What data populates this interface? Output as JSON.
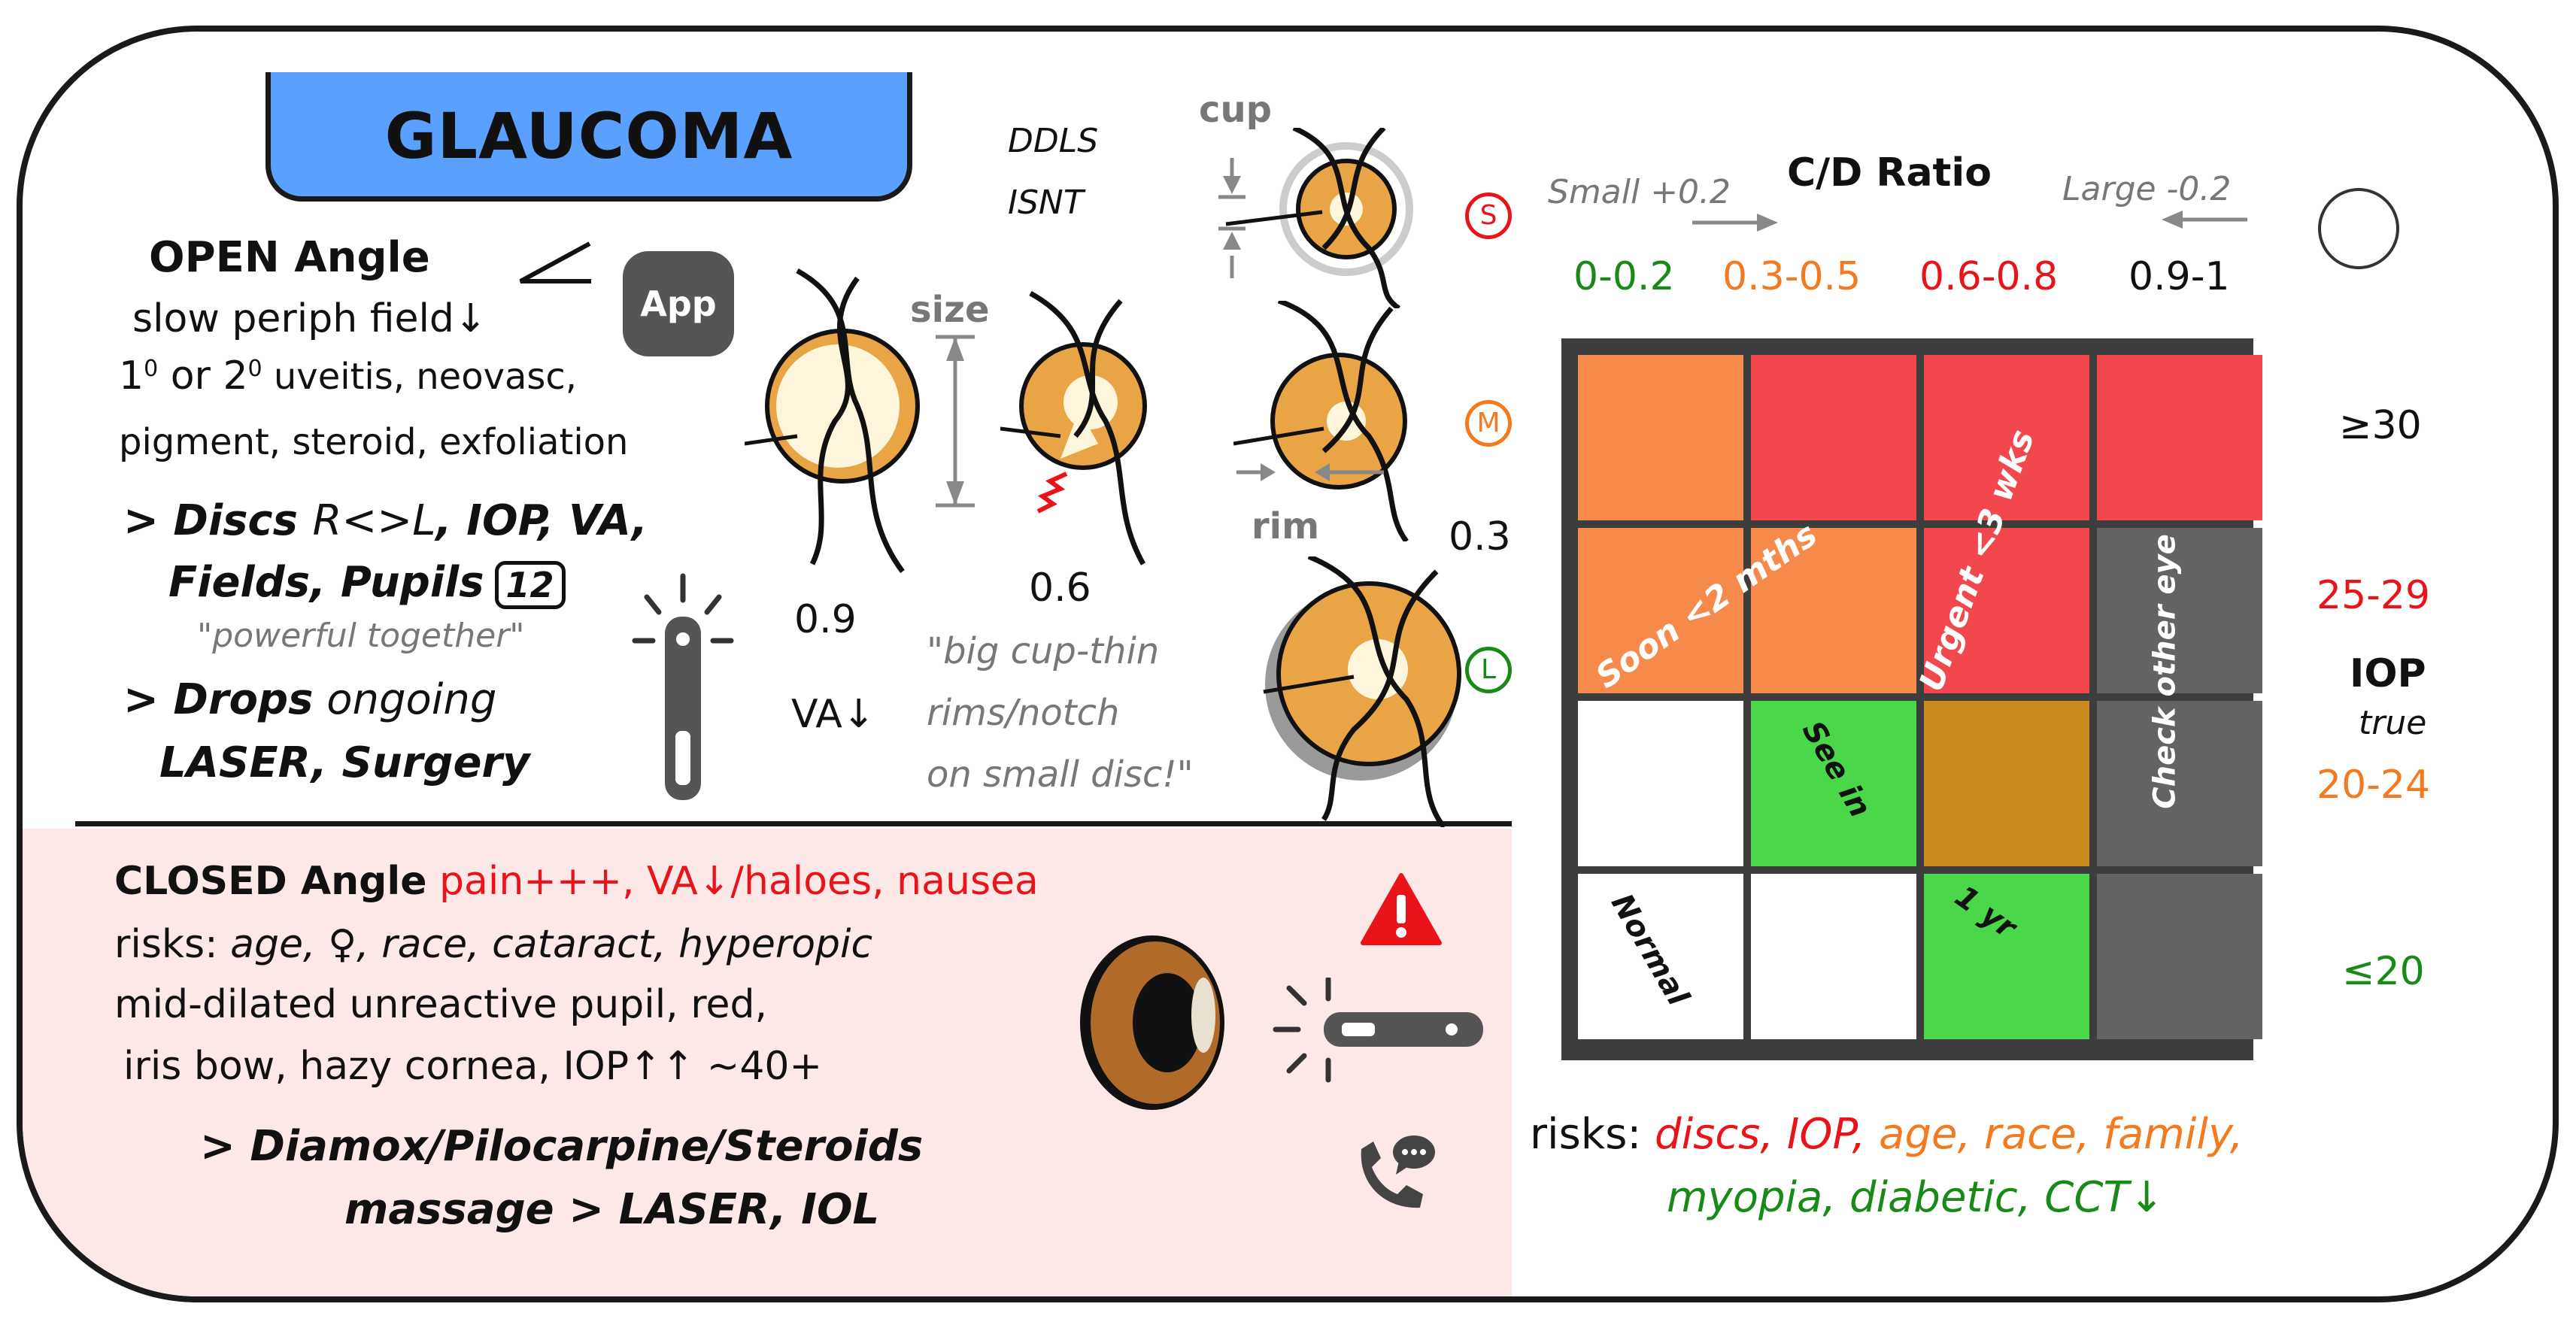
{
  "title": "GLAUCOMA",
  "app_button": "App",
  "open": {
    "heading": "OPEN Angle",
    "line1": "slow periph field↓",
    "line2_prefix": "1",
    "line2_sup1": "0",
    "line2_mid": " or 2",
    "line2_sup2": "0",
    "line2_rest": " uveitis, neovasc,",
    "line3": "pigment, steroid, exfoliation",
    "action1_a": "> Discs ",
    "action1_b": "R<>L",
    "action1_c": ", IOP, VA,",
    "action2": "Fields, Pupils",
    "badge": "12",
    "quote": "\"powerful together\"",
    "action3_a": "> Drops",
    "action3_b": " ongoing",
    "action4": "LASER, Surgery"
  },
  "discs": {
    "ddls": "DDLS",
    "isnt": "ISNT",
    "size_label": "size",
    "cup_label": "cup",
    "rim_label": "rim",
    "val_large": "0.9",
    "val_notch": "0.6",
    "val_mid": "0.3",
    "va": "VA↓",
    "note1": "\"big cup-thin",
    "note2": "rims/notch",
    "note3": "on small disc!\""
  },
  "sizes": {
    "s": "S",
    "m": "M",
    "l": "L"
  },
  "cd": {
    "title": "C/D Ratio",
    "small_hint": "Small +0.2",
    "large_hint": "Large -0.2",
    "ranges": [
      "0-0.2",
      "0.3-0.5",
      "0.6-0.8",
      "0.9-1"
    ]
  },
  "iop": {
    "label": "IOP",
    "sub": "true",
    "levels": [
      "≥30",
      "25-29",
      "20-24",
      "≤20"
    ]
  },
  "grid": {
    "soon": "Soon <2 mths",
    "urgent": "Urgent <3 wks",
    "check": "Check other eye",
    "see_in": "See in",
    "one_yr": "1 yr",
    "normal": "Normal"
  },
  "risk": {
    "prefix": "risks: ",
    "red": "discs, IOP, ",
    "orange": "age, race, family,",
    "green": "myopia, diabetic, CCT↓"
  },
  "closed": {
    "heading": "CLOSED Angle",
    "symptoms": "pain+++, VA↓/haloes, nausea",
    "risks": "risks: ",
    "risks_it": "age, ♀, race, cataract, hyperopic",
    "line3": "mid-dilated unreactive pupil, red,",
    "line4": "iris bow, hazy cornea, IOP↑↑ ~40+",
    "action1": "> Diamox/Pilocarpine/Steroids",
    "action2": "massage > LASER, IOL"
  },
  "colors": {
    "tab": "#5aa0ff",
    "cell_orange": "#f68a4a",
    "cell_red": "#f2474d",
    "cell_gray": "#636363",
    "cell_brown": "#c98a1f",
    "cell_green": "#4ad84a",
    "disc": "#e9a545"
  }
}
